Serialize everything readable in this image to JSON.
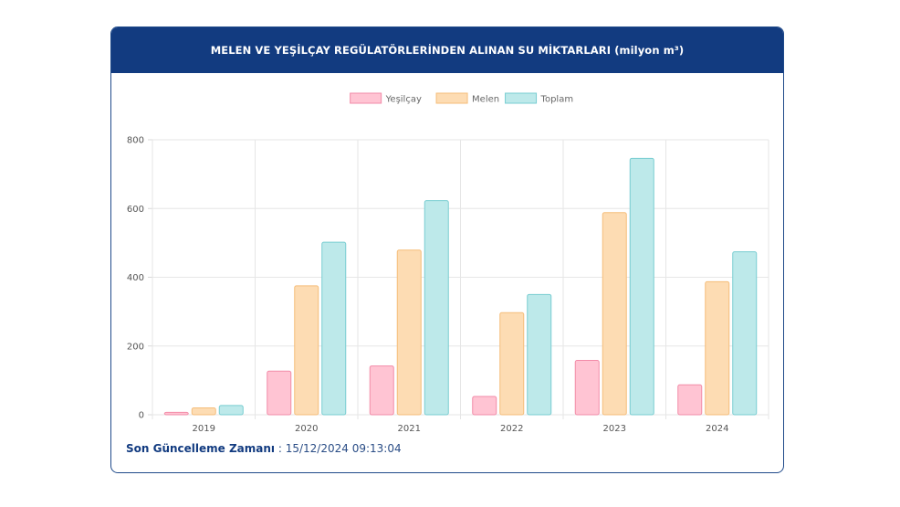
{
  "header": {
    "title": "MELEN VE YEŞİLÇAY REGÜLATÖRLERİNDEN ALINAN SU MİKTARLARI (milyon m³)"
  },
  "footer": {
    "label": "Son Güncelleme Zamanı",
    "separator": " : ",
    "value": "15/12/2024 09:13:04"
  },
  "chart_data": {
    "type": "bar",
    "title": "",
    "xlabel": "",
    "ylabel": "",
    "categories": [
      "2019",
      "2020",
      "2021",
      "2022",
      "2023",
      "2024"
    ],
    "ylim": [
      0,
      800
    ],
    "yticks": [
      0,
      200,
      400,
      600,
      800
    ],
    "grid": true,
    "legend_position": "top",
    "series": [
      {
        "name": "Yeşilçay",
        "values": [
          7,
          127,
          142,
          53,
          158,
          87
        ],
        "fill": "#ffc4d3",
        "stroke": "#f28ba8"
      },
      {
        "name": "Melen",
        "values": [
          20,
          375,
          479,
          297,
          588,
          387
        ],
        "fill": "#fddcb3",
        "stroke": "#f5bd7a"
      },
      {
        "name": "Toplam",
        "values": [
          27,
          502,
          623,
          350,
          746,
          474
        ],
        "fill": "#bde9ea",
        "stroke": "#78cdd1"
      }
    ]
  }
}
